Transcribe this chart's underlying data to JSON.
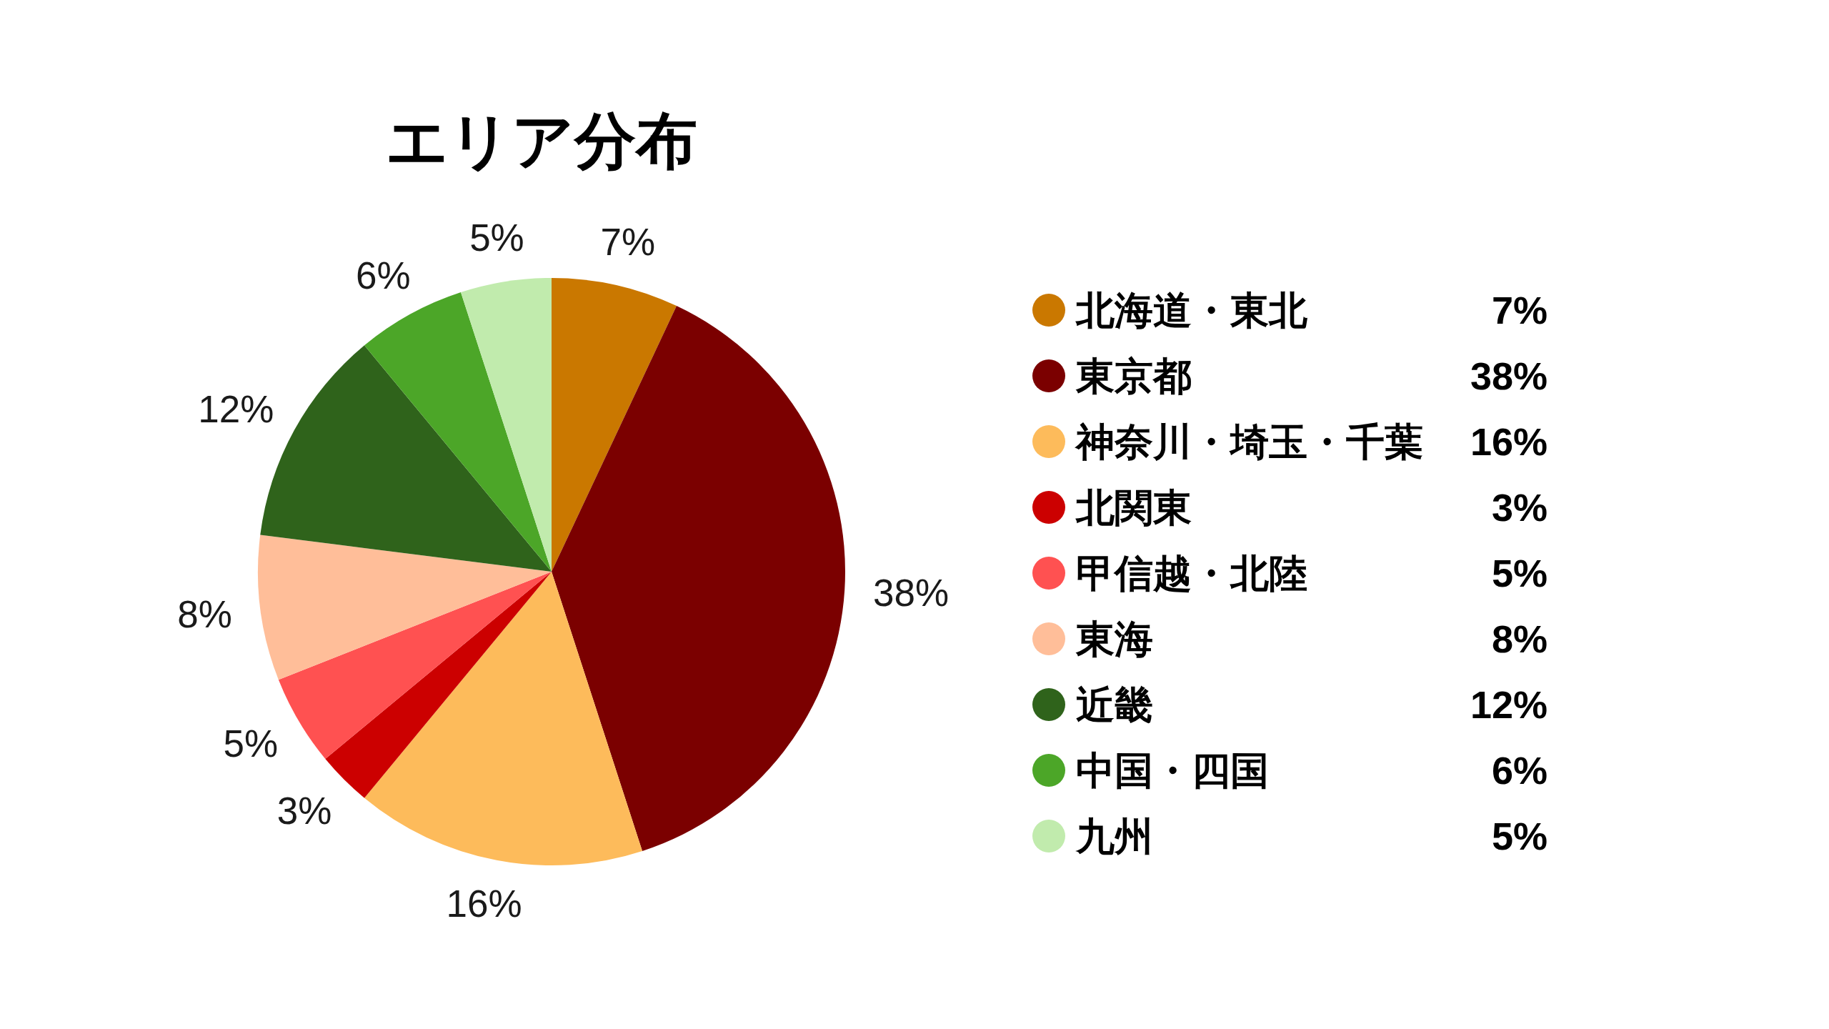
{
  "chart_data": {
    "type": "pie",
    "title": "エリア分布",
    "categories": [
      "北海道・東北",
      "東京都",
      "神奈川・埼玉・千葉",
      "北関東",
      "甲信越・北陸",
      "東海",
      "近畿",
      "中国・四国",
      "九州"
    ],
    "values": [
      7,
      38,
      16,
      3,
      5,
      8,
      12,
      6,
      5
    ],
    "value_labels": [
      "7%",
      "38%",
      "16%",
      "3%",
      "5%",
      "8%",
      "12%",
      "6%",
      "5%"
    ],
    "colors": [
      "#ca7800",
      "#7b0000",
      "#fdbb5b",
      "#cc0000",
      "#ff5151",
      "#ffbe99",
      "#2f631b",
      "#4ca628",
      "#c1ebad"
    ],
    "legend": "right"
  }
}
